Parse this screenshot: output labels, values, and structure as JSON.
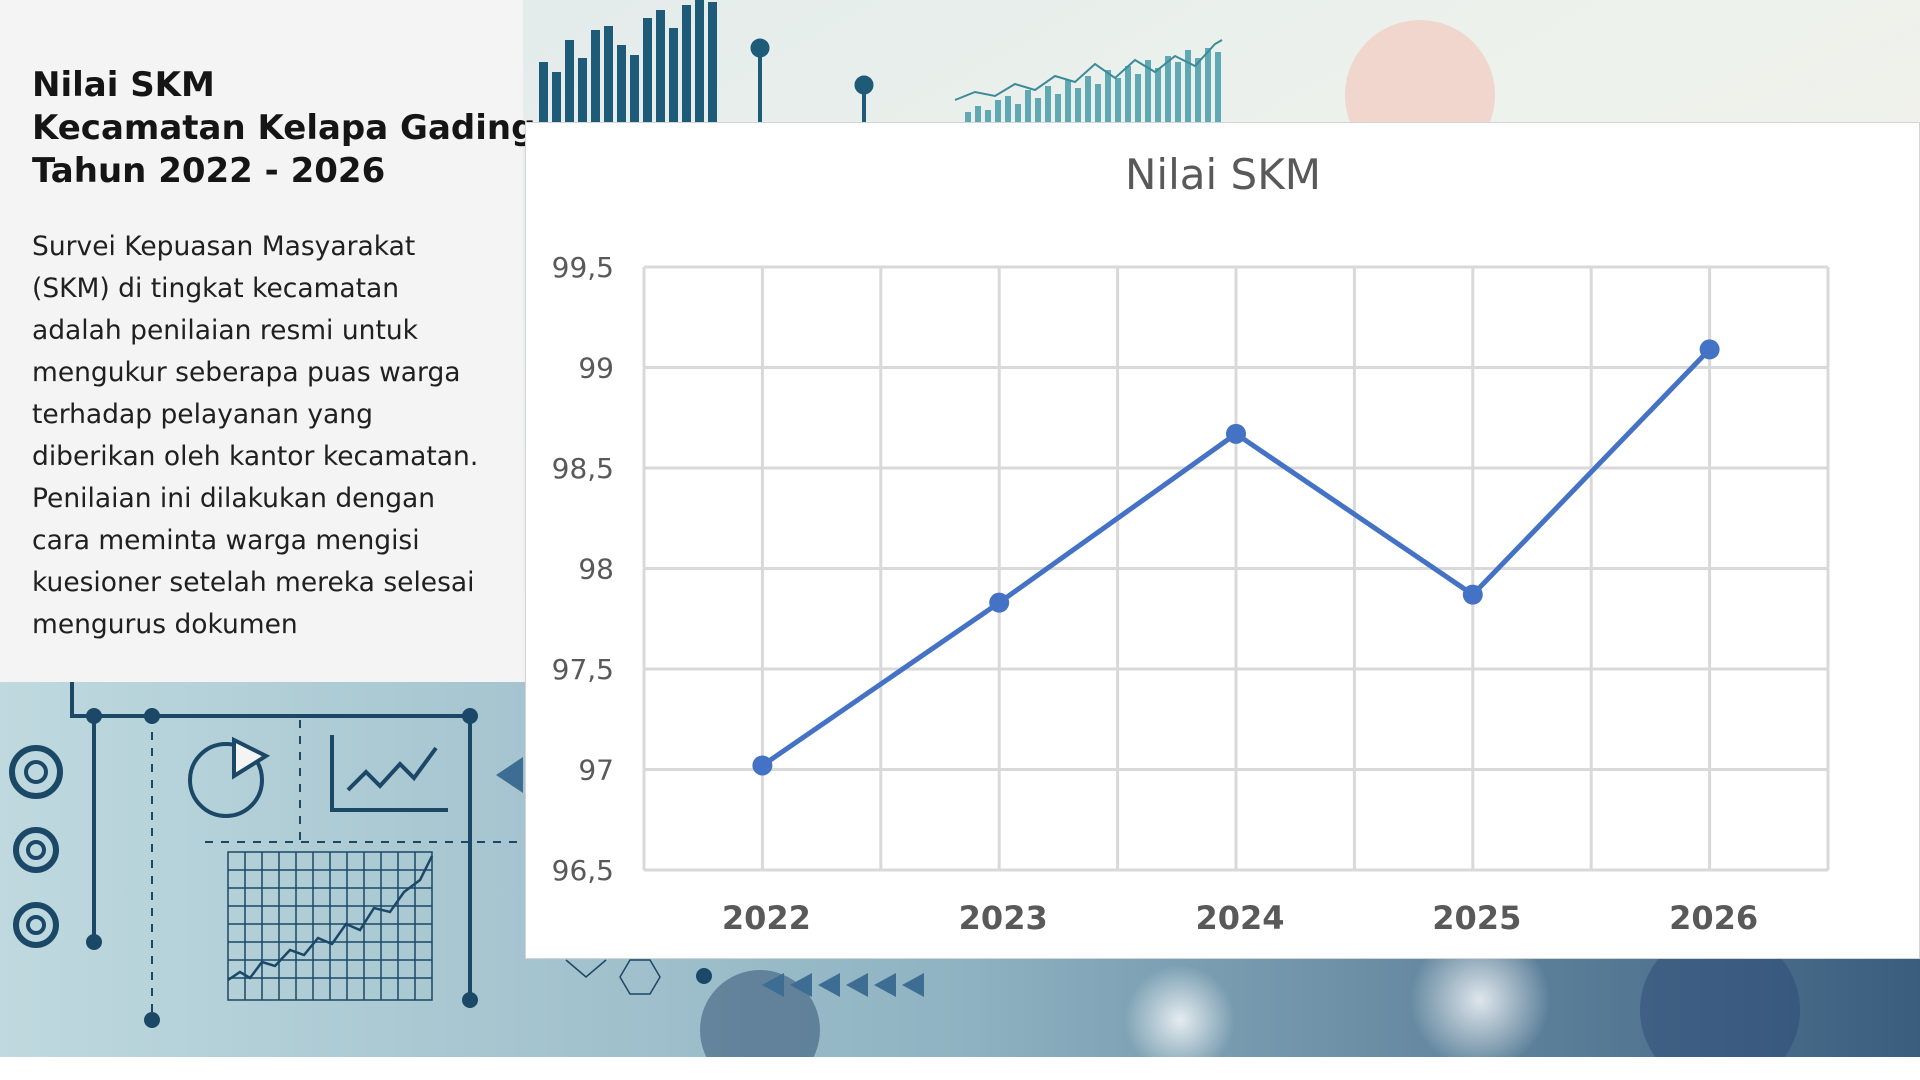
{
  "panel": {
    "title_lines": [
      "Nilai SKM",
      "Kecamatan Kelapa Gading",
      "Tahun 2022 - 2026"
    ],
    "description": "Survei Kepuasan Masyarakat (SKM) di tingkat kecamatan adalah penilaian resmi untuk mengukur seberapa puas warga terhadap pelayanan yang diberikan oleh kantor kecamatan. Penilaian ini dilakukan dengan cara meminta warga mengisi kuesioner setelah mereka selesai mengurus dokumen"
  },
  "colors": {
    "line": "#4472c4",
    "grid": "#d9d9d9",
    "panel_bg": "#f4f4f4",
    "bg_teal": "#1f4e6b"
  },
  "chart_data": {
    "type": "line",
    "title": "Nilai SKM",
    "categories": [
      "2022",
      "2023",
      "2024",
      "2025",
      "2026"
    ],
    "series": [
      {
        "values": [
          97.02,
          97.83,
          98.67,
          97.87,
          99.09
        ]
      }
    ],
    "ylim": [
      96.5,
      99.5
    ],
    "yticks": [
      {
        "value": 96.5,
        "label": "96,5"
      },
      {
        "value": 97,
        "label": "97"
      },
      {
        "value": 97.5,
        "label": "97,5"
      },
      {
        "value": 98,
        "label": "98"
      },
      {
        "value": 98.5,
        "label": "98,5"
      },
      {
        "value": 99,
        "label": "99"
      },
      {
        "value": 99.5,
        "label": "99,5"
      }
    ],
    "grid": true,
    "legend": "none"
  }
}
